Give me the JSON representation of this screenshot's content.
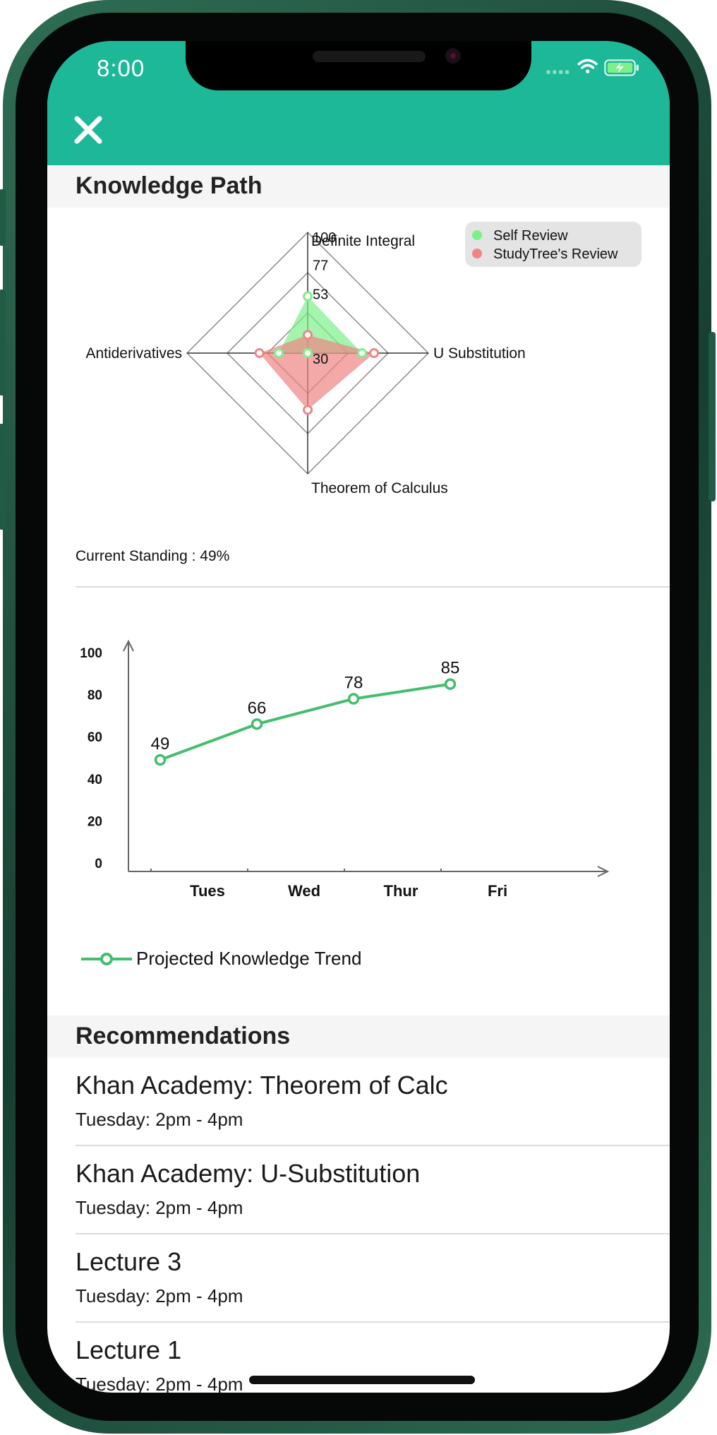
{
  "status_bar": {
    "time": "8:00"
  },
  "header": {
    "close_icon": "close-icon"
  },
  "knowledge_path": {
    "title": "Knowledge Path",
    "standing": "Current Standing : 49%"
  },
  "colors": {
    "accent": "#1cb898",
    "self_review": "#7ef08a",
    "studytree_review": "#f08585",
    "trend_line": "#43be6e"
  },
  "chart_data": [
    {
      "type": "radar",
      "axes": [
        "Definite Integral",
        "U Substitution",
        "Theorem of Calculus",
        "Antiderivatives"
      ],
      "scale_labels": [
        "30",
        "53",
        "77",
        "100"
      ],
      "rmax": 100,
      "legend": {
        "placement": "top-right",
        "entries": [
          "Self Review",
          "StudyTree's Review"
        ]
      },
      "series": [
        {
          "name": "Self Review",
          "values": [
            47,
            45,
            0,
            24
          ]
        },
        {
          "name": "StudyTree's Review",
          "values": [
            15,
            55,
            47,
            40
          ]
        }
      ]
    },
    {
      "type": "line",
      "categories": [
        "Tues",
        "Wed",
        "Thur",
        "Fri"
      ],
      "yticks": [
        "0",
        "20",
        "40",
        "60",
        "80",
        "100"
      ],
      "ylim": [
        0,
        100
      ],
      "grid": false,
      "series": [
        {
          "name": "Projected Knowledge Trend",
          "values": [
            49,
            66,
            78,
            85
          ],
          "labels": [
            "49",
            "66",
            "78",
            "85"
          ]
        }
      ]
    }
  ],
  "recommendations": {
    "title": "Recommendations",
    "items": [
      {
        "title": "Khan Academy: Theorem of Calc",
        "time": "Tuesday: 2pm - 4pm"
      },
      {
        "title": "Khan Academy: U-Substitution",
        "time": "Tuesday: 2pm - 4pm"
      },
      {
        "title": "Lecture 3",
        "time": "Tuesday: 2pm - 4pm"
      },
      {
        "title": "Lecture 1",
        "time": "Tuesday: 2pm - 4pm"
      }
    ]
  }
}
